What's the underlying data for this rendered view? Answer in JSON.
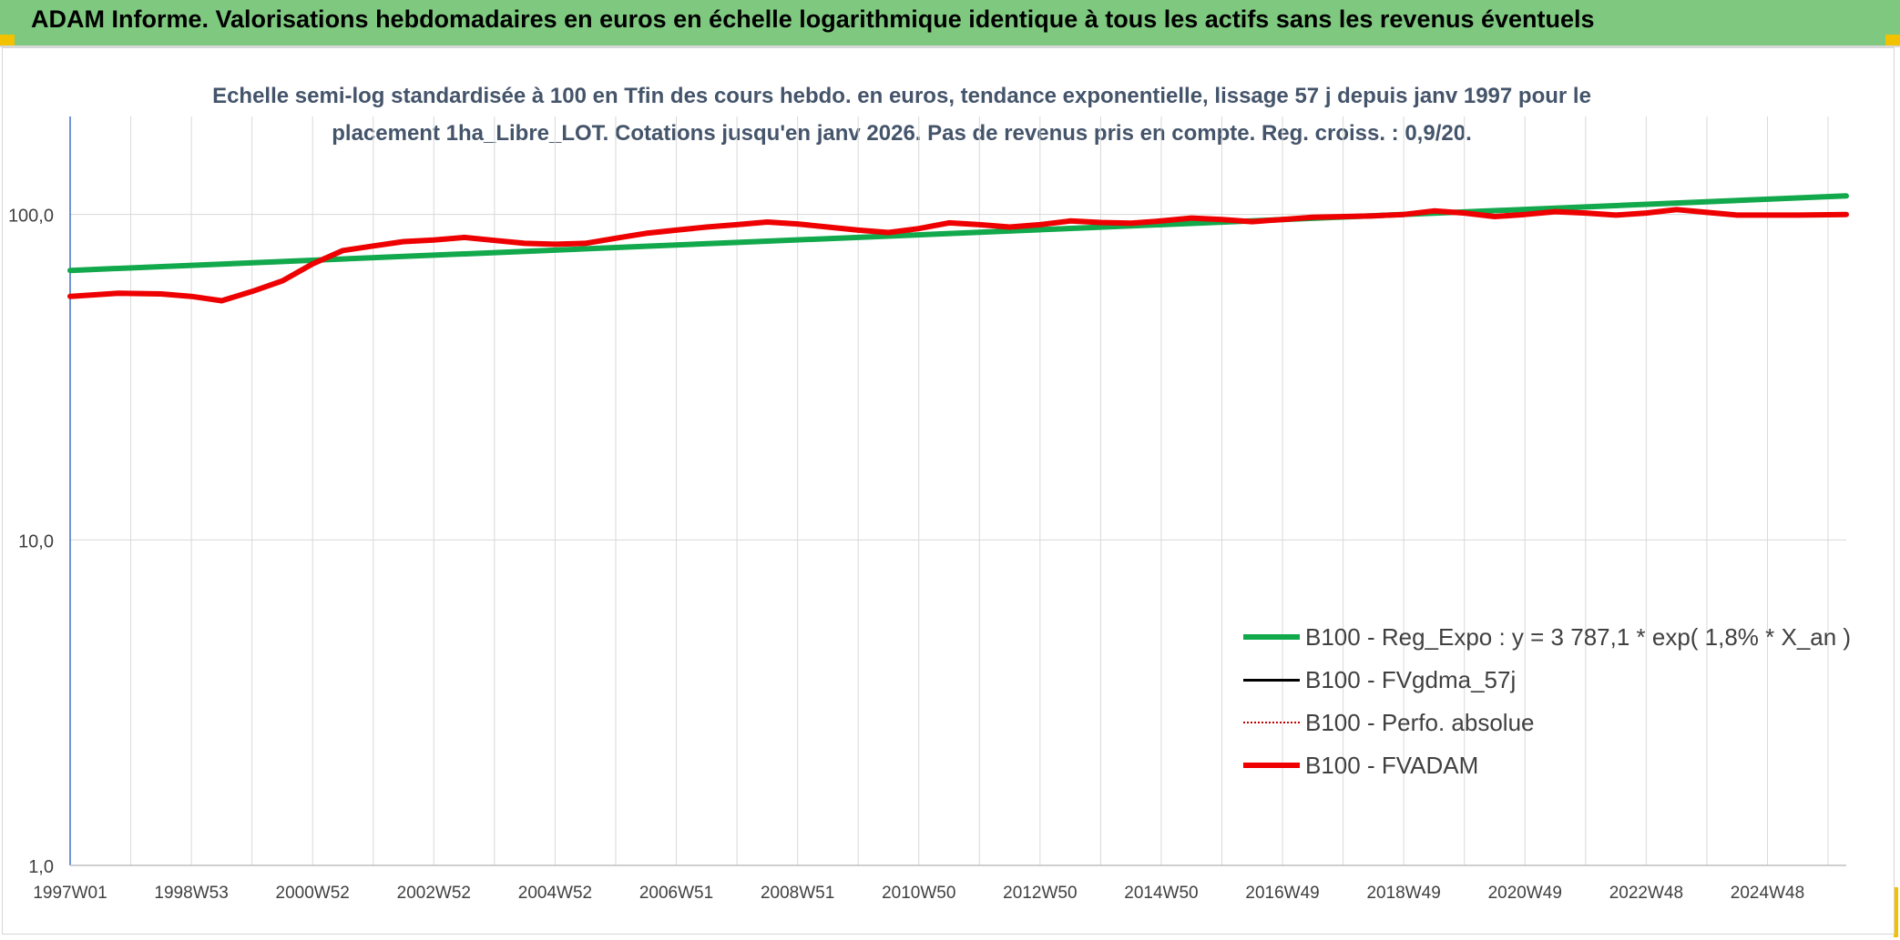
{
  "header": {
    "title": "ADAM Informe. Valorisations hebdomadaires en euros en échelle logarithmique identique à tous les actifs sans les revenus éventuels"
  },
  "colors": {
    "header_bg": "#7ec97f",
    "trend": "#12a84c",
    "fvadam": "#ee0000",
    "fvgdma": "#000000",
    "perfo": "#c00000",
    "gridline": "#d9d9d9",
    "y_axis": "#4472c4",
    "accent_corner": "#f2c200"
  },
  "chart_data": {
    "type": "line",
    "title_line1": "Echelle semi-log standardisée à 100 en Tfin des cours hebdo. en euros, tendance exponentielle, lissage 57 j depuis janv 1997 pour le",
    "title_line2": "placement 1ha_Libre_LOT. Cotations jusqu'en janv 2026. Pas de revenus pris en compte. Reg. croiss. : 0,9/20.",
    "y_scale": "log",
    "ylim": [
      1,
      200
    ],
    "y_ticks": [
      {
        "value": 1,
        "label": "1,0"
      },
      {
        "value": 10,
        "label": "10,0"
      },
      {
        "value": 100,
        "label": "100,0"
      }
    ],
    "xlim": [
      1997.0,
      2026.3
    ],
    "x_ticks": [
      {
        "value": 1997.0,
        "label": "1997W01"
      },
      {
        "value": 1999.0,
        "label": "1998W53"
      },
      {
        "value": 2001.0,
        "label": "2000W52"
      },
      {
        "value": 2003.0,
        "label": "2002W52"
      },
      {
        "value": 2005.0,
        "label": "2004W52"
      },
      {
        "value": 2007.0,
        "label": "2006W51"
      },
      {
        "value": 2009.0,
        "label": "2008W51"
      },
      {
        "value": 2011.0,
        "label": "2010W50"
      },
      {
        "value": 2013.0,
        "label": "2012W50"
      },
      {
        "value": 2015.0,
        "label": "2014W50"
      },
      {
        "value": 2017.0,
        "label": "2016W49"
      },
      {
        "value": 2019.0,
        "label": "2018W49"
      },
      {
        "value": 2021.0,
        "label": "2020W49"
      },
      {
        "value": 2023.0,
        "label": "2022W48"
      },
      {
        "value": 2025.0,
        "label": "2024W48"
      }
    ],
    "x_minor_ticks": [
      1998.0,
      2000.0,
      2002.0,
      2004.0,
      2006.0,
      2008.0,
      2010.0,
      2012.0,
      2014.0,
      2016.0,
      2018.0,
      2020.0,
      2022.0,
      2024.0,
      2026.0
    ],
    "series": [
      {
        "name": "B100 - Reg_Expo : y = 3 787,1 * exp( 1,8% *  X_an )",
        "style": "trend",
        "x": [
          1997.0,
          2026.3
        ],
        "y": [
          67.3,
          114.0
        ]
      },
      {
        "name": "B100 - FVgdma_57j",
        "style": "fvgdma",
        "x": [],
        "y": []
      },
      {
        "name": "B100 - Perfo. absolue",
        "style": "perfo",
        "x": [],
        "y": []
      },
      {
        "name": "B100 - FVADAM",
        "style": "fvadam",
        "x": [
          1997.0,
          1997.8,
          1998.5,
          1999.0,
          1999.5,
          2000.0,
          2000.5,
          2001.0,
          2001.5,
          2002.0,
          2002.5,
          2003.0,
          2003.5,
          2004.0,
          2004.5,
          2005.0,
          2005.5,
          2006.0,
          2006.5,
          2007.0,
          2007.5,
          2008.0,
          2008.5,
          2009.0,
          2009.5,
          2010.0,
          2010.5,
          2011.0,
          2011.5,
          2012.0,
          2012.5,
          2013.0,
          2013.5,
          2014.0,
          2014.5,
          2015.0,
          2015.5,
          2016.0,
          2016.5,
          2017.0,
          2017.5,
          2018.0,
          2018.5,
          2019.0,
          2019.5,
          2020.0,
          2020.5,
          2021.0,
          2021.5,
          2022.0,
          2022.5,
          2023.0,
          2023.5,
          2024.0,
          2024.5,
          2025.0,
          2025.5,
          2026.3
        ],
        "y": [
          56.0,
          57.3,
          57.0,
          56.0,
          54.3,
          58.0,
          62.5,
          70.5,
          77.5,
          80.0,
          82.5,
          83.5,
          85.0,
          83.2,
          81.5,
          81.0,
          81.5,
          84.5,
          87.5,
          89.5,
          91.5,
          93.0,
          94.8,
          93.5,
          91.5,
          89.5,
          88.0,
          90.5,
          94.2,
          93.0,
          91.5,
          93.0,
          95.5,
          94.5,
          94.0,
          95.5,
          97.5,
          96.5,
          95.0,
          96.5,
          98.0,
          98.5,
          99.0,
          100.0,
          102.5,
          101.0,
          98.5,
          100.0,
          102.0,
          101.0,
          99.5,
          101.0,
          103.5,
          101.5,
          99.5,
          99.5,
          99.5,
          100.0
        ]
      }
    ]
  }
}
